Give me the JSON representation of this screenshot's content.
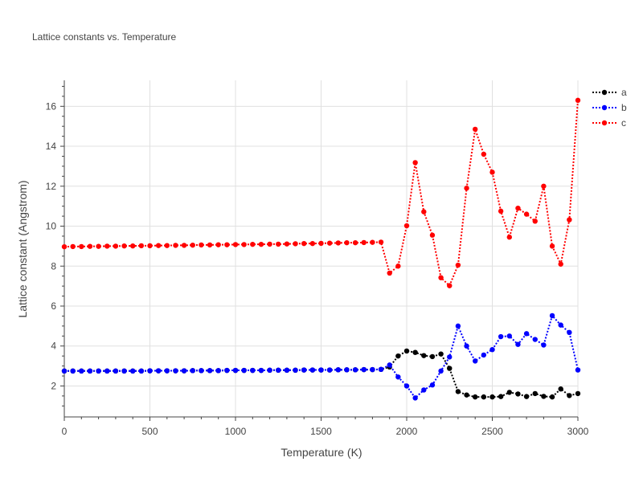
{
  "chart_data": {
    "type": "line",
    "title": "Lattice constants vs. Temperature",
    "xlabel": "Temperature (K)",
    "ylabel": "Lattice constant (Angstrom)",
    "xlim": [
      0,
      3000
    ],
    "ylim": [
      0.45,
      17.3
    ],
    "x_ticks": [
      0,
      500,
      1000,
      1500,
      2000,
      2500,
      3000
    ],
    "y_ticks": [
      2,
      4,
      6,
      8,
      10,
      12,
      14,
      16
    ],
    "grid": true,
    "legend_position": "top-right",
    "x": [
      0,
      50,
      100,
      150,
      200,
      250,
      300,
      350,
      400,
      450,
      500,
      550,
      600,
      650,
      700,
      750,
      800,
      850,
      900,
      950,
      1000,
      1050,
      1100,
      1150,
      1200,
      1250,
      1300,
      1350,
      1400,
      1450,
      1500,
      1550,
      1600,
      1650,
      1700,
      1750,
      1800,
      1850,
      1900,
      1950,
      2000,
      2050,
      2100,
      2150,
      2200,
      2250,
      2300,
      2350,
      2400,
      2450,
      2500,
      2550,
      2600,
      2650,
      2700,
      2750,
      2800,
      2850,
      2900,
      2950,
      3000
    ],
    "series": [
      {
        "name": "a",
        "color": "#000000",
        "values": [
          2.75,
          2.75,
          2.75,
          2.75,
          2.75,
          2.75,
          2.75,
          2.75,
          2.75,
          2.75,
          2.76,
          2.76,
          2.76,
          2.76,
          2.76,
          2.77,
          2.77,
          2.77,
          2.77,
          2.78,
          2.78,
          2.78,
          2.78,
          2.78,
          2.79,
          2.79,
          2.79,
          2.79,
          2.8,
          2.8,
          2.8,
          2.8,
          2.81,
          2.81,
          2.81,
          2.82,
          2.82,
          2.83,
          2.95,
          3.5,
          3.75,
          3.68,
          3.52,
          3.47,
          3.6,
          2.88,
          1.72,
          1.55,
          1.45,
          1.45,
          1.45,
          1.47,
          1.68,
          1.6,
          1.47,
          1.62,
          1.48,
          1.45,
          1.85,
          1.52,
          1.62
        ]
      },
      {
        "name": "b",
        "color": "#0000ff",
        "values": [
          2.75,
          2.75,
          2.75,
          2.75,
          2.75,
          2.75,
          2.75,
          2.75,
          2.75,
          2.75,
          2.76,
          2.76,
          2.76,
          2.76,
          2.76,
          2.77,
          2.77,
          2.77,
          2.77,
          2.78,
          2.78,
          2.78,
          2.78,
          2.78,
          2.79,
          2.79,
          2.79,
          2.79,
          2.8,
          2.8,
          2.8,
          2.8,
          2.81,
          2.81,
          2.81,
          2.82,
          2.82,
          2.83,
          3.05,
          2.45,
          2.0,
          1.4,
          1.8,
          2.05,
          2.75,
          3.45,
          5.0,
          4.0,
          3.25,
          3.55,
          3.82,
          4.47,
          4.5,
          4.08,
          4.62,
          4.33,
          4.05,
          5.52,
          5.05,
          4.68,
          2.8
        ]
      },
      {
        "name": "c",
        "color": "#ff0000",
        "values": [
          8.97,
          8.98,
          8.98,
          8.99,
          8.99,
          9.0,
          9.0,
          9.01,
          9.01,
          9.02,
          9.02,
          9.03,
          9.03,
          9.04,
          9.04,
          9.05,
          9.06,
          9.06,
          9.07,
          9.07,
          9.08,
          9.08,
          9.09,
          9.09,
          9.1,
          9.1,
          9.11,
          9.12,
          9.13,
          9.13,
          9.14,
          9.15,
          9.16,
          9.17,
          9.17,
          9.18,
          9.19,
          9.2,
          7.65,
          8.0,
          10.02,
          13.18,
          10.72,
          9.55,
          7.42,
          7.02,
          8.05,
          11.9,
          14.85,
          13.6,
          12.7,
          10.75,
          9.45,
          10.9,
          10.6,
          10.25,
          12.0,
          9.0,
          8.1,
          10.32,
          16.3
        ]
      }
    ]
  }
}
